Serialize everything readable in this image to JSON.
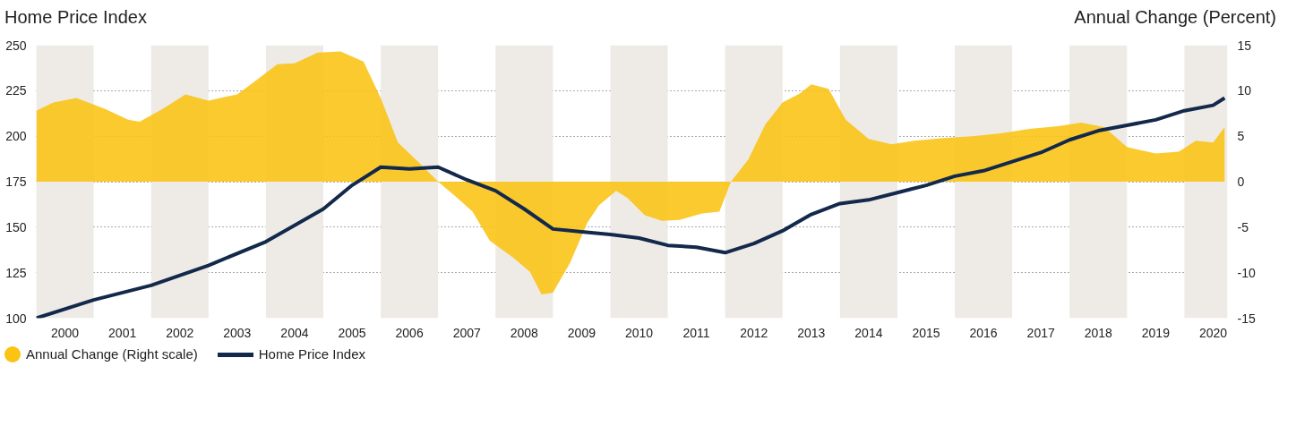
{
  "chart_data": {
    "type": "line",
    "ylabel": "Home Price Index",
    "y2label": "Annual Change (Percent)",
    "xlim": [
      2000,
      2020.75
    ],
    "xticks": [
      {
        "value": 2000.5,
        "label": "2000"
      },
      {
        "value": 2001.5,
        "label": "2001"
      },
      {
        "value": 2002.5,
        "label": "2002"
      },
      {
        "value": 2003.5,
        "label": "2003"
      },
      {
        "value": 2004.5,
        "label": "2004"
      },
      {
        "value": 2005.5,
        "label": "2005"
      },
      {
        "value": 2006.5,
        "label": "2006"
      },
      {
        "value": 2007.5,
        "label": "2007"
      },
      {
        "value": 2008.5,
        "label": "2008"
      },
      {
        "value": 2009.5,
        "label": "2009"
      },
      {
        "value": 2010.5,
        "label": "2010"
      },
      {
        "value": 2011.5,
        "label": "2011"
      },
      {
        "value": 2012.5,
        "label": "2012"
      },
      {
        "value": 2013.5,
        "label": "2013"
      },
      {
        "value": 2014.5,
        "label": "2014"
      },
      {
        "value": 2015.5,
        "label": "2015"
      },
      {
        "value": 2016.5,
        "label": "2016"
      },
      {
        "value": 2017.5,
        "label": "2017"
      },
      {
        "value": 2018.5,
        "label": "2018"
      },
      {
        "value": 2019.5,
        "label": "2019"
      },
      {
        "value": 2020.5,
        "label": "2020"
      }
    ],
    "ylim": [
      100,
      250
    ],
    "yticks": [
      100,
      125,
      150,
      175,
      200,
      225,
      250
    ],
    "y2lim": [
      -15,
      15
    ],
    "y2ticks": [
      -15,
      -10,
      -5,
      0,
      5,
      10,
      15
    ],
    "grid": "y",
    "legend": "bottom",
    "bands": [
      {
        "axis": "x",
        "from": 2000,
        "to": 2001,
        "color": "#eeebe6"
      },
      {
        "axis": "x",
        "from": 2002,
        "to": 2003,
        "color": "#eeebe6"
      },
      {
        "axis": "x",
        "from": 2004,
        "to": 2005,
        "color": "#eeebe6"
      },
      {
        "axis": "x",
        "from": 2006,
        "to": 2007,
        "color": "#eeebe6"
      },
      {
        "axis": "x",
        "from": 2008,
        "to": 2009,
        "color": "#eeebe6"
      },
      {
        "axis": "x",
        "from": 2010,
        "to": 2011,
        "color": "#eeebe6"
      },
      {
        "axis": "x",
        "from": 2012,
        "to": 2013,
        "color": "#eeebe6"
      },
      {
        "axis": "x",
        "from": 2014,
        "to": 2015,
        "color": "#eeebe6"
      },
      {
        "axis": "x",
        "from": 2016,
        "to": 2017,
        "color": "#eeebe6"
      },
      {
        "axis": "x",
        "from": 2018,
        "to": 2019,
        "color": "#eeebe6"
      },
      {
        "axis": "x",
        "from": 2020,
        "to": 2020.75,
        "color": "#eeebe6"
      }
    ],
    "series": [
      {
        "name": "Annual Change (Right scale)",
        "type": "area",
        "axis": "y2",
        "color": "#fbc312",
        "x": [
          2000.0,
          2000.3,
          2000.7,
          2001.2,
          2001.6,
          2001.8,
          2002.2,
          2002.6,
          2003.0,
          2003.5,
          2003.8,
          2004.2,
          2004.5,
          2004.9,
          2005.3,
          2005.7,
          2006.0,
          2006.3,
          2006.7,
          2007.0,
          2007.3,
          2007.6,
          2007.9,
          2008.3,
          2008.6,
          2008.8,
          2009.0,
          2009.3,
          2009.6,
          2009.8,
          2010.1,
          2010.3,
          2010.6,
          2010.9,
          2011.2,
          2011.6,
          2011.9,
          2012.1,
          2012.4,
          2012.7,
          2013.0,
          2013.3,
          2013.5,
          2013.8,
          2014.1,
          2014.5,
          2014.9,
          2015.3,
          2015.8,
          2016.3,
          2016.8,
          2017.3,
          2017.8,
          2018.2,
          2018.6,
          2019.0,
          2019.5,
          2019.9,
          2020.2,
          2020.5,
          2020.7
        ],
        "values": [
          7.8,
          8.7,
          9.2,
          8.0,
          6.8,
          6.6,
          8.0,
          9.6,
          8.9,
          9.6,
          11.0,
          12.9,
          13.0,
          14.2,
          14.3,
          13.2,
          9.2,
          4.3,
          1.9,
          0,
          -1.6,
          -3.3,
          -6.5,
          -8.3,
          -9.9,
          -12.4,
          -12.2,
          -8.9,
          -4.5,
          -2.6,
          -1.0,
          -1.8,
          -3.7,
          -4.3,
          -4.2,
          -3.5,
          -3.3,
          0,
          2.4,
          6.3,
          8.7,
          9.7,
          10.7,
          10.2,
          6.8,
          4.7,
          4.1,
          4.5,
          4.8,
          5.0,
          5.3,
          5.8,
          6.1,
          6.5,
          6.0,
          3.8,
          3.1,
          3.3,
          4.5,
          4.3,
          6.0
        ]
      },
      {
        "name": "Home Price Index",
        "color": "#13294b",
        "x": [
          2000.0,
          2001.0,
          2002.0,
          2003.0,
          2004.0,
          2005.0,
          2005.5,
          2006.0,
          2006.5,
          2007.0,
          2007.5,
          2008.0,
          2008.5,
          2009.0,
          2009.5,
          2010.0,
          2010.5,
          2011.0,
          2011.5,
          2012.0,
          2012.5,
          2013.0,
          2013.5,
          2014.0,
          2014.5,
          2015.0,
          2015.5,
          2016.0,
          2016.5,
          2017.0,
          2017.5,
          2018.0,
          2018.5,
          2019.0,
          2019.5,
          2020.0,
          2020.5,
          2020.7
        ],
        "values": [
          100,
          110,
          118,
          129,
          142,
          160,
          173,
          183,
          182,
          183,
          176,
          170,
          160,
          149,
          147.5,
          146,
          144,
          140,
          139,
          136,
          141,
          148,
          157,
          163,
          165,
          169,
          173,
          178,
          181,
          186,
          191,
          198,
          203,
          206,
          209,
          214,
          217,
          221
        ]
      }
    ]
  }
}
